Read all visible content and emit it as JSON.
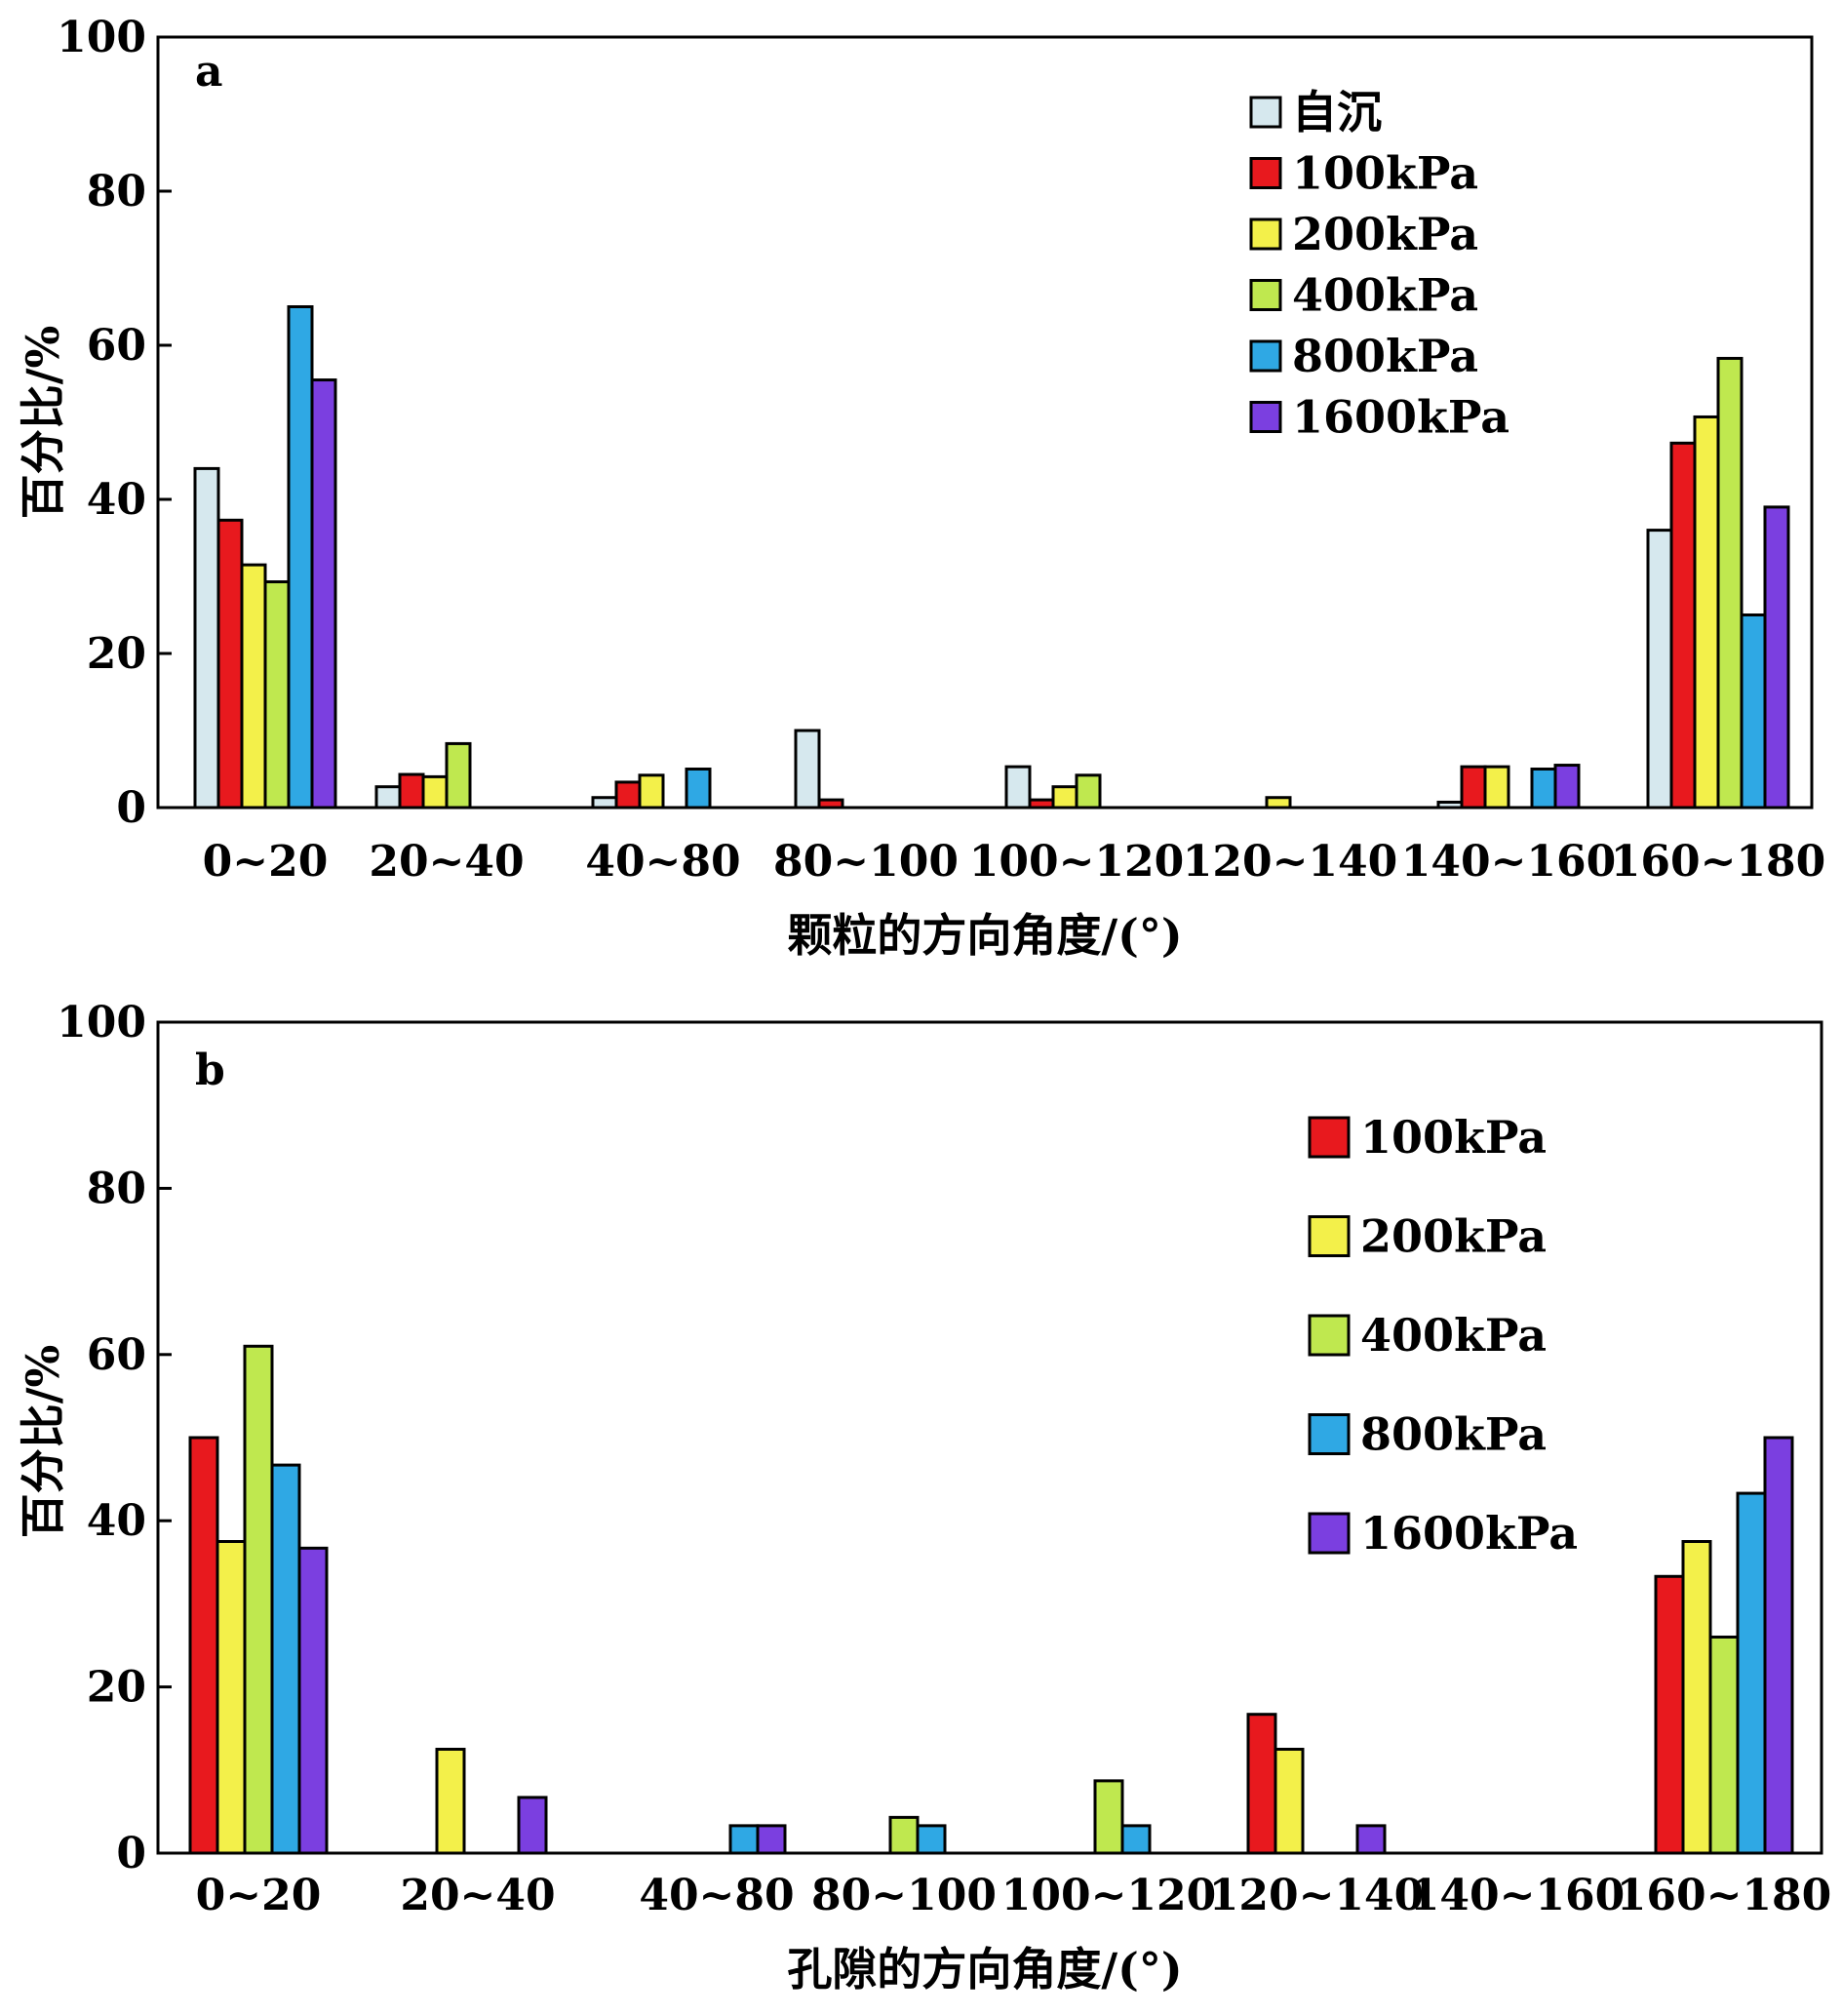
{
  "chart_data": [
    {
      "type": "bar",
      "panel_label": "a",
      "xlabel": "颗粒的方向角度/(°)",
      "ylabel": "百分比/%",
      "ylim": [
        0,
        100
      ],
      "yticks": [
        "0",
        "20",
        "40",
        "60",
        "80",
        "100"
      ],
      "legend_position": "top-right",
      "categories": [
        "0~20",
        "20~40",
        "40~80",
        "80~100",
        "100~120",
        "120~140",
        "140~160",
        "160~180"
      ],
      "series": [
        {
          "name": "自沉",
          "color": "#d6e8ee",
          "values": [
            44,
            2.7,
            1.3,
            10,
            5.3,
            0,
            0.7,
            36
          ]
        },
        {
          "name": "100kPa",
          "color": "#e8191e",
          "values": [
            37.3,
            4.3,
            3.3,
            1,
            1,
            0,
            5.3,
            47.3
          ]
        },
        {
          "name": "200kPa",
          "color": "#f3f04a",
          "values": [
            31.5,
            4,
            4.2,
            0,
            2.7,
            1.3,
            5.3,
            50.7
          ]
        },
        {
          "name": "400kPa",
          "color": "#bfe84f",
          "values": [
            29.3,
            8.3,
            0,
            0,
            4.2,
            0,
            0,
            58.3
          ]
        },
        {
          "name": "800kPa",
          "color": "#2fa8e4",
          "values": [
            65,
            0,
            5,
            0,
            0,
            0,
            5,
            25
          ]
        },
        {
          "name": "1600kPa",
          "color": "#7b3fe0",
          "values": [
            55.5,
            0,
            0,
            0,
            0,
            0,
            5.5,
            39
          ]
        }
      ]
    },
    {
      "type": "bar",
      "panel_label": "b",
      "xlabel": "孔隙的方向角度/(°)",
      "ylabel": "百分比/%",
      "ylim": [
        0,
        100
      ],
      "yticks": [
        "0",
        "20",
        "40",
        "60",
        "80",
        "100"
      ],
      "legend_position": "top-right",
      "categories": [
        "0~20",
        "20~40",
        "40~80",
        "80~100",
        "100~120",
        "120~140",
        "140~160",
        "160~180"
      ],
      "series": [
        {
          "name": "100kPa",
          "color": "#e8191e",
          "values": [
            50,
            0,
            0,
            0,
            0,
            16.7,
            0,
            33.3
          ]
        },
        {
          "name": "200kPa",
          "color": "#f3f04a",
          "values": [
            37.5,
            12.5,
            0,
            0,
            0,
            12.5,
            0,
            37.5
          ]
        },
        {
          "name": "400kPa",
          "color": "#bfe84f",
          "values": [
            61,
            0,
            0,
            4.3,
            8.7,
            0,
            0,
            26
          ]
        },
        {
          "name": "800kPa",
          "color": "#2fa8e4",
          "values": [
            46.7,
            0,
            3.3,
            3.3,
            3.3,
            0,
            0,
            43.3
          ]
        },
        {
          "name": "1600kPa",
          "color": "#7b3fe0",
          "values": [
            36.7,
            6.7,
            3.3,
            0,
            0,
            3.3,
            0,
            50
          ]
        }
      ]
    }
  ]
}
